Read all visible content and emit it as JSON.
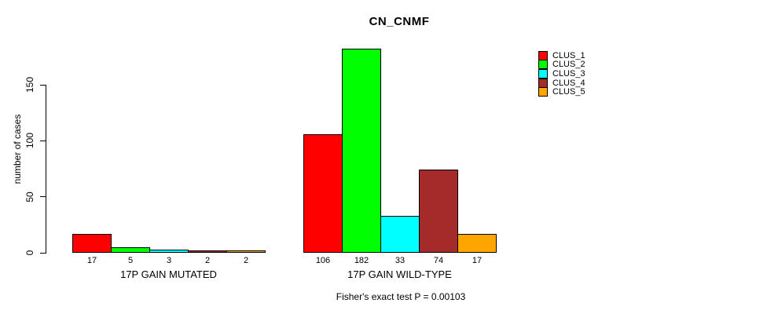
{
  "chart_data": {
    "type": "bar",
    "title": "CN_CNMF",
    "ylabel": "number of cases",
    "xlabel": "",
    "caption": "Fisher's exact test P = 0.00103",
    "categories": [
      "17P GAIN MUTATED",
      "17P GAIN WILD-TYPE"
    ],
    "series": [
      {
        "name": "CLUS_1",
        "color": "#FF0000",
        "values": [
          17,
          106
        ]
      },
      {
        "name": "CLUS_2",
        "color": "#00FF00",
        "values": [
          5,
          182
        ]
      },
      {
        "name": "CLUS_3",
        "color": "#00FFFF",
        "values": [
          3,
          33
        ]
      },
      {
        "name": "CLUS_4",
        "color": "#A52A2A",
        "values": [
          2,
          74
        ]
      },
      {
        "name": "CLUS_5",
        "color": "#FFA500",
        "values": [
          2,
          17
        ]
      }
    ],
    "bar_value_labels_shown": true,
    "yticks": [
      0,
      50,
      100,
      150
    ],
    "ylim": [
      0,
      150
    ],
    "grid": false,
    "legend_position": "right",
    "background_color": "#FFFFFF",
    "text_color": "#000000"
  }
}
